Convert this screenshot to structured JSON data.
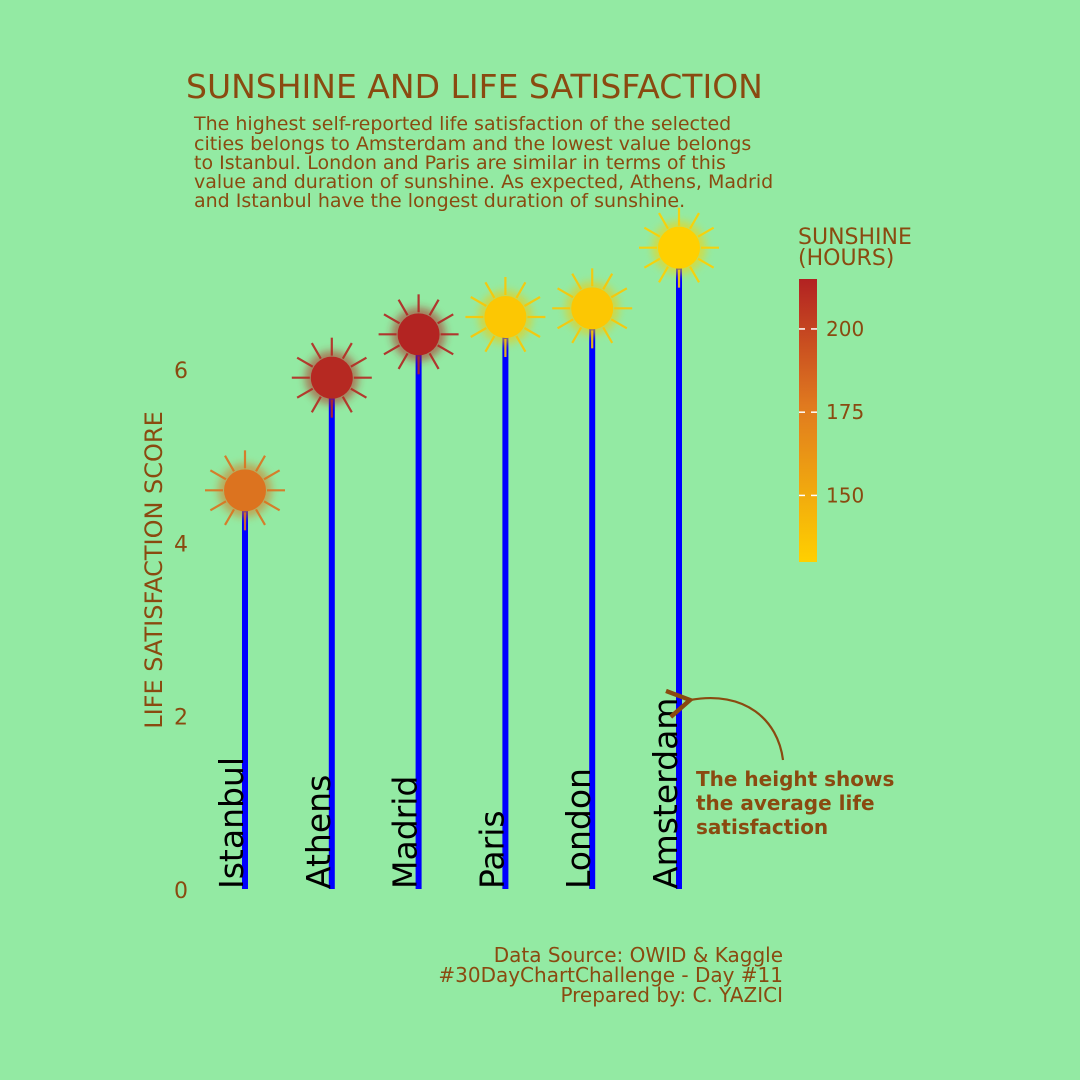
{
  "chart_data": {
    "type": "lollipop",
    "title": "SUNSHINE AND LIFE SATISFACTION",
    "subtitle_lines": [
      "The highest self-reported life satisfaction of the selected",
      "cities belongs to Amsterdam and the lowest value belongs",
      "to Istanbul. London and Paris are similar in terms of this",
      "value and duration of sunshine. As expected, Athens, Madrid",
      "and Istanbul have the longest duration of sunshine."
    ],
    "ylabel": "LIFE SATISFACTION SCORE",
    "ylim": [
      0,
      7.4
    ],
    "yticks": [
      0,
      2,
      4,
      6
    ],
    "categories": [
      "Istanbul",
      "Athens",
      "Madrid",
      "Paris",
      "London",
      "Amsterdam"
    ],
    "values": [
      4.6,
      5.9,
      6.4,
      6.6,
      6.7,
      7.4
    ],
    "sunshine_hours": [
      180,
      212,
      214,
      135,
      135,
      130
    ],
    "colorbar": {
      "title_lines": [
        "SUNSHINE",
        "(HOURS)"
      ],
      "ticks": [
        150,
        175,
        200
      ],
      "min": 130,
      "max": 215,
      "color_low": "#ffd000",
      "color_high": "#b22222"
    },
    "annotation_lines": [
      "The height shows",
      "the average life",
      "satisfaction"
    ],
    "stem_color": "#0000ff",
    "text_color": "#8a4a10",
    "background": "#93eaa3"
  },
  "footer_lines": [
    "Data Source: OWID & Kaggle",
    "#30DayChartChallenge - Day #11",
    "Prepared by: C. YAZICI"
  ]
}
